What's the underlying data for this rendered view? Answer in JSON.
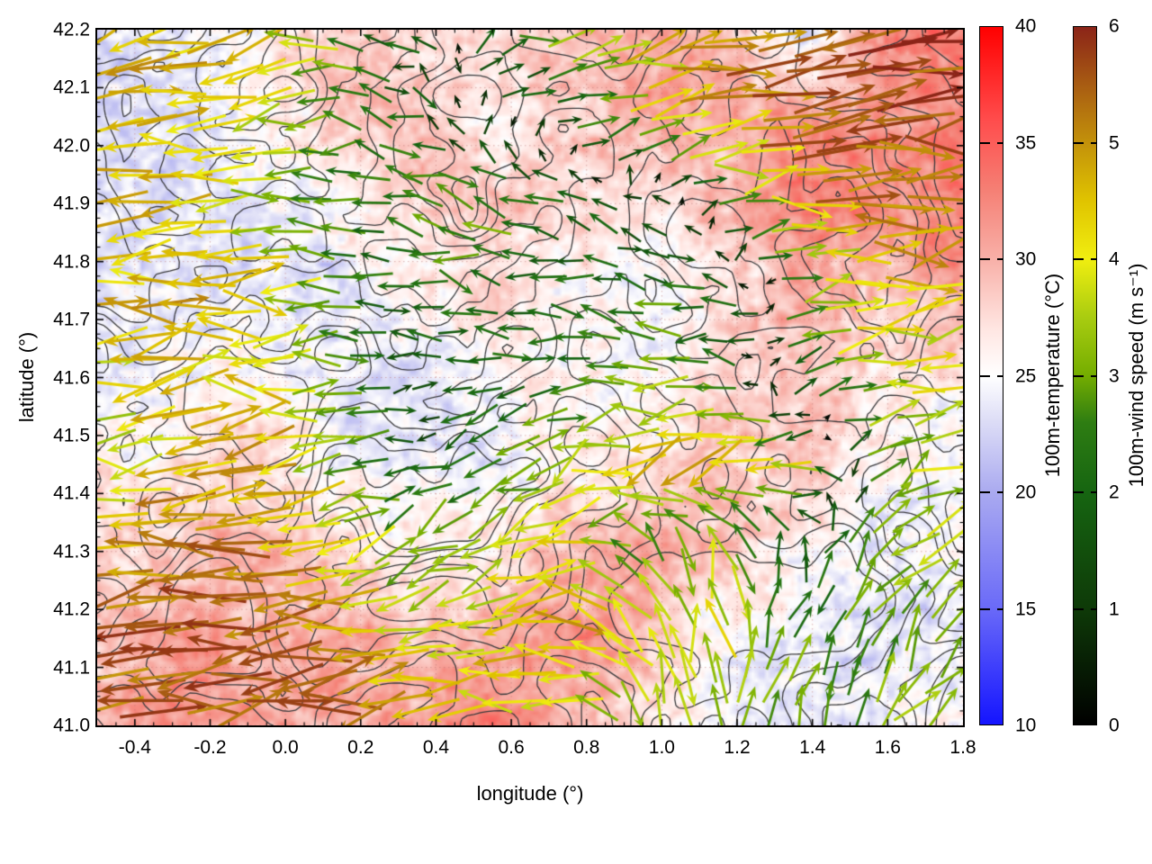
{
  "axes": {
    "xlabel": "longitude (°)",
    "ylabel": "latitude (°)",
    "xtick_labels": [
      "-0.4",
      "-0.2",
      "0.0",
      "0.2",
      "0.4",
      "0.6",
      "0.8",
      "1.0",
      "1.2",
      "1.4",
      "1.6",
      "1.8"
    ],
    "ytick_labels": [
      "41.0",
      "41.1",
      "41.2",
      "41.3",
      "41.4",
      "41.5",
      "41.6",
      "41.7",
      "41.8",
      "41.9",
      "42.0",
      "42.1",
      "42.2"
    ]
  },
  "colorbars": [
    {
      "title": "100m-temperature (°C)",
      "min": 10,
      "max": 40,
      "tick_labels": [
        "10",
        "15",
        "20",
        "25",
        "30",
        "35",
        "40"
      ],
      "stops": [
        [
          10,
          "#1414ff"
        ],
        [
          15,
          "#6a6af8"
        ],
        [
          20,
          "#aaaaf0"
        ],
        [
          23,
          "#dcdcf6"
        ],
        [
          25,
          "#ffffff"
        ],
        [
          27,
          "#ffe6e2"
        ],
        [
          30,
          "#f8b0a8"
        ],
        [
          33,
          "#f57f74"
        ],
        [
          36,
          "#ff4c4c"
        ],
        [
          40,
          "#ff0000"
        ]
      ]
    },
    {
      "title": "100m-wind speed (m s⁻¹)",
      "min": 0,
      "max": 6,
      "tick_labels": [
        "0",
        "1",
        "2",
        "3",
        "4",
        "5",
        "6"
      ],
      "stops": [
        [
          0,
          "#000000"
        ],
        [
          1,
          "#0e3a08"
        ],
        [
          2,
          "#166511"
        ],
        [
          2.6,
          "#2e7d12"
        ],
        [
          3,
          "#74ad00"
        ],
        [
          3.5,
          "#a8cc10"
        ],
        [
          4,
          "#f0ee10"
        ],
        [
          4.5,
          "#e0c400"
        ],
        [
          5,
          "#c3920a"
        ],
        [
          5.5,
          "#a85c12"
        ],
        [
          6,
          "#8b2418"
        ]
      ]
    }
  ],
  "chart_data": {
    "type": "heatmap+contour+quiver",
    "title": "",
    "xlabel": "longitude (°)",
    "ylabel": "latitude (°)",
    "xlim": [
      -0.5,
      1.8
    ],
    "ylim": [
      41.0,
      42.2
    ],
    "xticks": [
      -0.4,
      -0.2,
      0.0,
      0.2,
      0.4,
      0.6,
      0.8,
      1.0,
      1.2,
      1.4,
      1.6,
      1.8
    ],
    "yticks": [
      41.0,
      41.1,
      41.2,
      41.3,
      41.4,
      41.5,
      41.6,
      41.7,
      41.8,
      41.9,
      42.0,
      42.1,
      42.2
    ],
    "grid_dotted": true,
    "temperature": {
      "name": "100m-temperature",
      "units": "°C",
      "range": [
        10,
        40
      ],
      "lon": [
        -0.5,
        -0.29,
        -0.08,
        0.13,
        0.34,
        0.55,
        0.76,
        0.97,
        1.18,
        1.39,
        1.6,
        1.8
      ],
      "lat": [
        42.2,
        42.05,
        41.9,
        41.75,
        41.6,
        41.45,
        41.3,
        41.15,
        41.0
      ],
      "values": [
        [
          23,
          24,
          26,
          29,
          28,
          27,
          29,
          31,
          30,
          22,
          32,
          33
        ],
        [
          23,
          23,
          25,
          28,
          30,
          26,
          28,
          30,
          31,
          32,
          31,
          32
        ],
        [
          24,
          23,
          24,
          25,
          28,
          29,
          27,
          26,
          29,
          33,
          32,
          33
        ],
        [
          23,
          24,
          24,
          23,
          26,
          28,
          26,
          25,
          27,
          30,
          29,
          31
        ],
        [
          24,
          25,
          26,
          24,
          23,
          25,
          26,
          25,
          28,
          29,
          27,
          26
        ],
        [
          26,
          27,
          28,
          25,
          24,
          24,
          26,
          27,
          29,
          28,
          26,
          24
        ],
        [
          27,
          29,
          30,
          28,
          26,
          27,
          30,
          31,
          28,
          26,
          24,
          25
        ],
        [
          29,
          31,
          30,
          31,
          29,
          30,
          32,
          29,
          25,
          24,
          23,
          24
        ],
        [
          30,
          32,
          31,
          30,
          31,
          33,
          30,
          27,
          24,
          23,
          24,
          25
        ]
      ]
    },
    "wind": {
      "name": "100m-wind speed",
      "units": "m s⁻¹",
      "range": [
        0,
        6
      ],
      "lon": [
        -0.5,
        -0.29,
        -0.08,
        0.13,
        0.34,
        0.55,
        0.76,
        0.97,
        1.18,
        1.39,
        1.6,
        1.8
      ],
      "lat": [
        42.2,
        42.05,
        41.9,
        41.75,
        41.6,
        41.45,
        41.3,
        41.15,
        41.0
      ],
      "u": [
        [
          -4.7,
          -4.5,
          -4.2,
          -3.0,
          -1.2,
          1.2,
          2.8,
          4.3,
          5.2,
          5.5,
          5.6,
          5.7
        ],
        [
          -4.6,
          -4.4,
          -4.0,
          -2.6,
          -1.6,
          0.4,
          1.8,
          3.2,
          4.8,
          5.5,
          5.6,
          5.6
        ],
        [
          -4.4,
          -4.3,
          -3.4,
          -2.4,
          -2.6,
          -2.8,
          -2.2,
          -1.4,
          1.4,
          4.4,
          5.4,
          5.2
        ],
        [
          -4.4,
          -4.6,
          -4.4,
          -2.4,
          -1.9,
          -2.4,
          -1.9,
          -2.3,
          -1.9,
          2.4,
          4.4,
          4.2
        ],
        [
          -3.9,
          -4.4,
          -4.1,
          -2.9,
          -1.4,
          -1.9,
          -2.4,
          -3.4,
          -2.0,
          1.9,
          3.4,
          3.8
        ],
        [
          -3.4,
          -4.4,
          -4.8,
          -3.2,
          -1.4,
          -2.2,
          -3.0,
          -4.1,
          -4.5,
          -3.4,
          2.4,
          3.4
        ],
        [
          -4.4,
          -5.3,
          -5.2,
          -4.1,
          -2.6,
          -3.0,
          -4.1,
          -2.0,
          -0.8,
          0.5,
          2.0,
          2.8
        ],
        [
          -5.3,
          -5.6,
          -5.4,
          -4.8,
          -3.8,
          -4.3,
          -5.1,
          -2.0,
          -0.5,
          0.8,
          1.5,
          2.0
        ],
        [
          -5.6,
          -5.7,
          -5.5,
          -5.3,
          -4.4,
          -3.9,
          -3.4,
          -1.0,
          0.3,
          0.6,
          1.5,
          2.5
        ]
      ],
      "v": [
        [
          -1.2,
          -1.0,
          -0.8,
          0.4,
          0.9,
          1.0,
          0.8,
          0.8,
          0.8,
          0.6,
          0.5,
          0.4
        ],
        [
          -1.0,
          -0.9,
          -0.6,
          0.3,
          0.7,
          0.8,
          0.6,
          0.7,
          0.8,
          0.6,
          0.4,
          0.4
        ],
        [
          -0.6,
          -0.5,
          -0.3,
          0.2,
          0.4,
          0.6,
          0.5,
          0.5,
          0.7,
          0.6,
          0.5,
          0.5
        ],
        [
          -0.4,
          -0.4,
          -0.2,
          0.0,
          0.2,
          0.3,
          0.3,
          0.3,
          0.4,
          0.5,
          0.6,
          0.5
        ],
        [
          -0.3,
          -0.3,
          -0.2,
          -0.2,
          -0.2,
          -0.2,
          -0.2,
          0.0,
          0.3,
          0.6,
          0.8,
          0.8
        ],
        [
          -0.5,
          -0.6,
          -0.8,
          -0.9,
          -0.5,
          -1.0,
          -1.6,
          -1.8,
          -1.5,
          -0.5,
          1.4,
          1.7
        ],
        [
          -0.5,
          -0.6,
          -0.8,
          -1.2,
          -1.2,
          -1.5,
          -1.0,
          2.4,
          3.4,
          2.0,
          2.2,
          2.2
        ],
        [
          -0.3,
          -0.3,
          -0.4,
          -0.6,
          -0.6,
          -0.5,
          0.0,
          3.4,
          3.8,
          2.5,
          2.5,
          2.8
        ],
        [
          -0.2,
          -0.2,
          -0.3,
          -0.3,
          -0.4,
          -0.2,
          0.5,
          3.0,
          3.3,
          2.8,
          2.8,
          2.5
        ]
      ]
    },
    "contours": {
      "description": "terrain elevation contours",
      "color": "#3a3a3c",
      "levels": [
        0.36,
        0.44,
        0.52,
        0.6,
        0.68
      ],
      "seed": 11
    },
    "quiver": {
      "seed": 7,
      "flip_fraction": 0.1
    }
  }
}
